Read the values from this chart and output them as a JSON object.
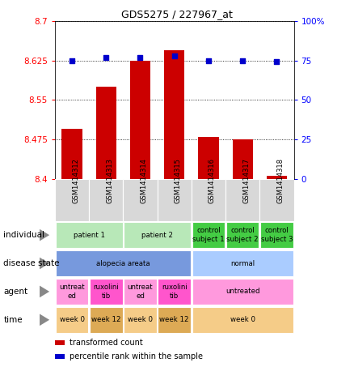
{
  "title": "GDS5275 / 227967_at",
  "samples": [
    "GSM1414312",
    "GSM1414313",
    "GSM1414314",
    "GSM1414315",
    "GSM1414316",
    "GSM1414317",
    "GSM1414318"
  ],
  "transformed_count": [
    8.495,
    8.575,
    8.625,
    8.645,
    8.48,
    8.475,
    8.405
  ],
  "percentile_rank": [
    75,
    77,
    77,
    78,
    75,
    75,
    74
  ],
  "bar_bottom": 8.4,
  "ylim_left": [
    8.4,
    8.7
  ],
  "ylim_right": [
    0,
    100
  ],
  "yticks_left": [
    8.4,
    8.475,
    8.55,
    8.625,
    8.7
  ],
  "yticks_right": [
    0,
    25,
    50,
    75,
    100
  ],
  "bar_color": "#cc0000",
  "dot_color": "#0000cc",
  "sample_label_bg": "#d8d8d8",
  "metadata_rows": [
    {
      "label": "individual",
      "cells": [
        {
          "text": "patient 1",
          "span": 2,
          "color": "#b8e8b8"
        },
        {
          "text": "patient 2",
          "span": 2,
          "color": "#b8e8b8"
        },
        {
          "text": "control\nsubject 1",
          "span": 1,
          "color": "#44cc44"
        },
        {
          "text": "control\nsubject 2",
          "span": 1,
          "color": "#44cc44"
        },
        {
          "text": "control\nsubject 3",
          "span": 1,
          "color": "#44cc44"
        }
      ]
    },
    {
      "label": "disease state",
      "cells": [
        {
          "text": "alopecia areata",
          "span": 4,
          "color": "#7799dd"
        },
        {
          "text": "normal",
          "span": 3,
          "color": "#aaccff"
        }
      ]
    },
    {
      "label": "agent",
      "cells": [
        {
          "text": "untreat\ned",
          "span": 1,
          "color": "#ff99dd"
        },
        {
          "text": "ruxolini\ntib",
          "span": 1,
          "color": "#ff55cc"
        },
        {
          "text": "untreat\ned",
          "span": 1,
          "color": "#ff99dd"
        },
        {
          "text": "ruxolini\ntib",
          "span": 1,
          "color": "#ff55cc"
        },
        {
          "text": "untreated",
          "span": 3,
          "color": "#ff99dd"
        }
      ]
    },
    {
      "label": "time",
      "cells": [
        {
          "text": "week 0",
          "span": 1,
          "color": "#f5cc88"
        },
        {
          "text": "week 12",
          "span": 1,
          "color": "#ddaa55"
        },
        {
          "text": "week 0",
          "span": 1,
          "color": "#f5cc88"
        },
        {
          "text": "week 12",
          "span": 1,
          "color": "#ddaa55"
        },
        {
          "text": "week 0",
          "span": 3,
          "color": "#f5cc88"
        }
      ]
    }
  ],
  "legend": [
    {
      "color": "#cc0000",
      "label": "transformed count"
    },
    {
      "color": "#0000cc",
      "label": "percentile rank within the sample"
    }
  ]
}
